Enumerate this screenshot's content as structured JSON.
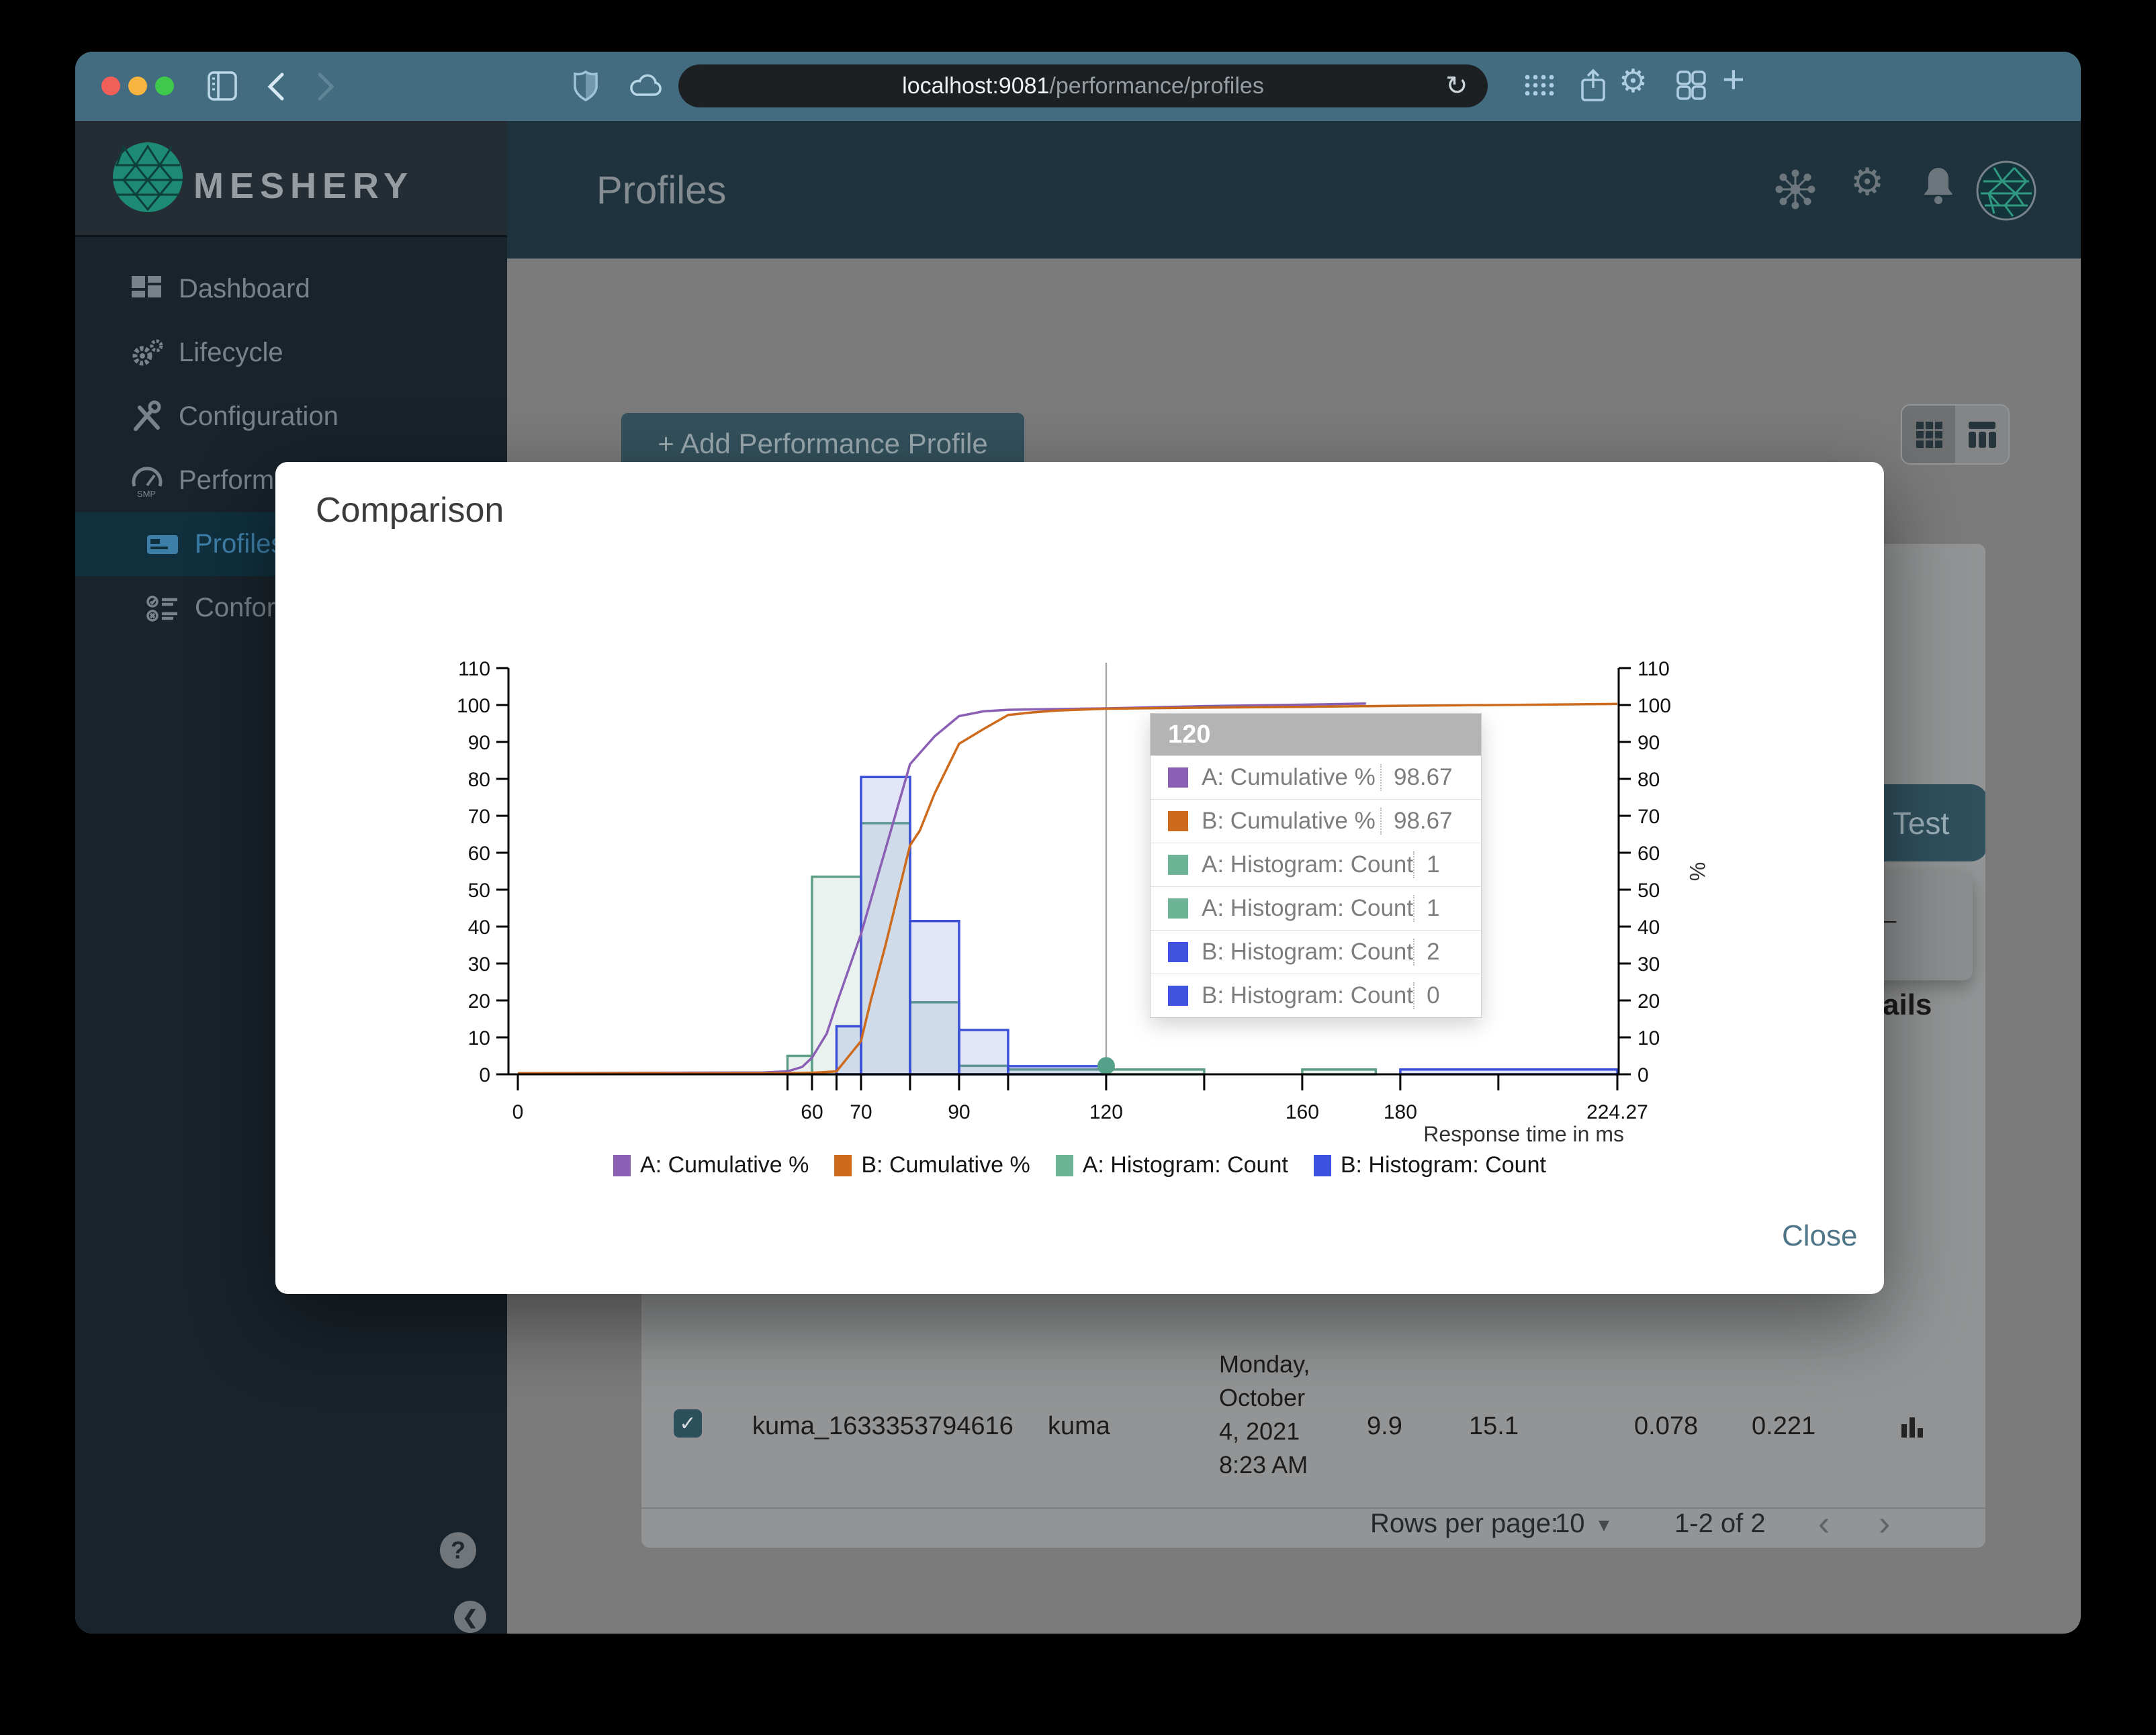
{
  "browser": {
    "url_host": "localhost:9081",
    "url_path": "/performance/profiles",
    "reload_icon": "↻",
    "plus_icon": "+"
  },
  "sidebar": {
    "brand": "MESHERY",
    "items": [
      {
        "id": "dashboard",
        "label": "Dashboard",
        "sub": false,
        "active": false
      },
      {
        "id": "lifecycle",
        "label": "Lifecycle",
        "sub": false,
        "active": false
      },
      {
        "id": "configuration",
        "label": "Configuration",
        "sub": false,
        "active": false
      },
      {
        "id": "performance",
        "label": "Performance",
        "sub": false,
        "active": false
      },
      {
        "id": "profiles",
        "label": "Profiles",
        "sub": true,
        "active": true
      },
      {
        "id": "conformance",
        "label": "Conformance",
        "sub": true,
        "active": false
      }
    ],
    "help_label": "?",
    "collapse_label": "❮"
  },
  "header": {
    "title": "Profiles"
  },
  "page": {
    "add_button": "+ Add Performance Profile",
    "test_button": "Test",
    "back_arrow": "←",
    "details_fragment": "ails",
    "table_row": {
      "checked": "✓",
      "name": "kuma_1633353794616",
      "mesh": "kuma",
      "date_lines": [
        "Monday,",
        "October",
        "4, 2021",
        "8:23 AM"
      ],
      "qps": "9.9",
      "duration": "15.1",
      "p50": "0.078",
      "p99": "0.221"
    },
    "pagination": {
      "rows_per_page_label": "Rows per page:",
      "rows_per_page": "10",
      "caret": "▾",
      "range": "1-2 of 2",
      "prev": "‹",
      "next": "›"
    }
  },
  "modal": {
    "title": "Comparison",
    "close_label": "Close",
    "tooltip": {
      "header": "120",
      "rows": [
        {
          "color": "#8a5fb4",
          "label": "A: Cumulative %",
          "value": "98.67"
        },
        {
          "color": "#cd6a1c",
          "label": "B: Cumulative %",
          "value": "98.67"
        },
        {
          "color": "#6db497",
          "label": "A: Histogram: Count",
          "value": "1"
        },
        {
          "color": "#6db497",
          "label": "A: Histogram: Count",
          "value": "1"
        },
        {
          "color": "#4053e0",
          "label": "B: Histogram: Count",
          "value": "2"
        },
        {
          "color": "#4053e0",
          "label": "B: Histogram: Count",
          "value": "0"
        }
      ]
    }
  },
  "chart_data": {
    "type": "histogram+cumulative-line",
    "xlabel": "Response time in ms",
    "ylabel_right": "%",
    "xlim": [
      0,
      224.27
    ],
    "ylim": [
      0,
      110
    ],
    "y_ticks": [
      0,
      10,
      20,
      30,
      40,
      50,
      60,
      70,
      80,
      90,
      100,
      110
    ],
    "x_ticks_labeled": [
      0,
      60,
      70,
      90,
      120,
      160,
      180,
      224.27
    ],
    "x_tick_label_strings": [
      "0",
      "60",
      "70",
      "90",
      "120",
      "160",
      "180",
      "224.27"
    ],
    "x_ticks_minor": [
      55,
      65,
      80,
      100,
      140,
      200
    ],
    "hover_x": 120,
    "hover_dot": {
      "x": 120,
      "y": 2.3,
      "color": "#55a089"
    },
    "series": [
      {
        "name": "A: Histogram: Count",
        "type": "bars",
        "stroke": "#5d9e85",
        "fill": "rgba(105,170,140,0.15)",
        "bins": [
          [
            55,
            60,
            5
          ],
          [
            60,
            70,
            53.5
          ],
          [
            70,
            80,
            68
          ],
          [
            80,
            90,
            19.5
          ],
          [
            90,
            100,
            2.3
          ],
          [
            100,
            120,
            1.3
          ],
          [
            120,
            140,
            1.3
          ],
          [
            160,
            175,
            1.3
          ]
        ]
      },
      {
        "name": "B: Histogram: Count",
        "type": "bars",
        "stroke": "#3c50d8",
        "fill": "rgba(80,100,220,0.16)",
        "bins": [
          [
            65,
            70,
            13
          ],
          [
            70,
            80,
            80.5
          ],
          [
            80,
            90,
            41.5
          ],
          [
            90,
            100,
            12
          ],
          [
            100,
            120,
            2.2
          ],
          [
            180,
            224.27,
            1.3
          ]
        ]
      },
      {
        "name": "A: Cumulative %",
        "type": "line",
        "stroke": "#8a5fb4",
        "points": [
          [
            0,
            0.3
          ],
          [
            50,
            0.5
          ],
          [
            55,
            0.8
          ],
          [
            58,
            2
          ],
          [
            60,
            4.5
          ],
          [
            63,
            11
          ],
          [
            65,
            19
          ],
          [
            70,
            38
          ],
          [
            75,
            61
          ],
          [
            80,
            84
          ],
          [
            82,
            87
          ],
          [
            85,
            91.5
          ],
          [
            90,
            97
          ],
          [
            95,
            98.3
          ],
          [
            100,
            98.7
          ],
          [
            110,
            98.9
          ],
          [
            120,
            99.1
          ],
          [
            140,
            99.7
          ],
          [
            160,
            100.1
          ],
          [
            173,
            100.4
          ]
        ]
      },
      {
        "name": "B: Cumulative %",
        "type": "line",
        "stroke": "#cd6a1c",
        "points": [
          [
            0,
            0.3
          ],
          [
            55,
            0.3
          ],
          [
            60,
            0.4
          ],
          [
            65,
            0.8
          ],
          [
            70,
            9
          ],
          [
            72,
            20
          ],
          [
            75,
            35
          ],
          [
            80,
            62
          ],
          [
            82,
            66
          ],
          [
            85,
            76
          ],
          [
            90,
            89.5
          ],
          [
            95,
            93.5
          ],
          [
            100,
            97.3
          ],
          [
            105,
            98
          ],
          [
            110,
            98.5
          ],
          [
            120,
            99
          ],
          [
            140,
            99.3
          ],
          [
            160,
            99.5
          ],
          [
            180,
            99.8
          ],
          [
            200,
            100
          ],
          [
            224.27,
            100.3
          ]
        ]
      }
    ],
    "legend": [
      {
        "label": "A: Cumulative %",
        "color": "#8a5fb4"
      },
      {
        "label": "B: Cumulative %",
        "color": "#cd6a1c"
      },
      {
        "label": "A: Histogram: Count",
        "color": "#6db497"
      },
      {
        "label": "B: Histogram: Count",
        "color": "#3d52e0"
      }
    ],
    "legend_position": "bottom-center",
    "grid": false
  }
}
